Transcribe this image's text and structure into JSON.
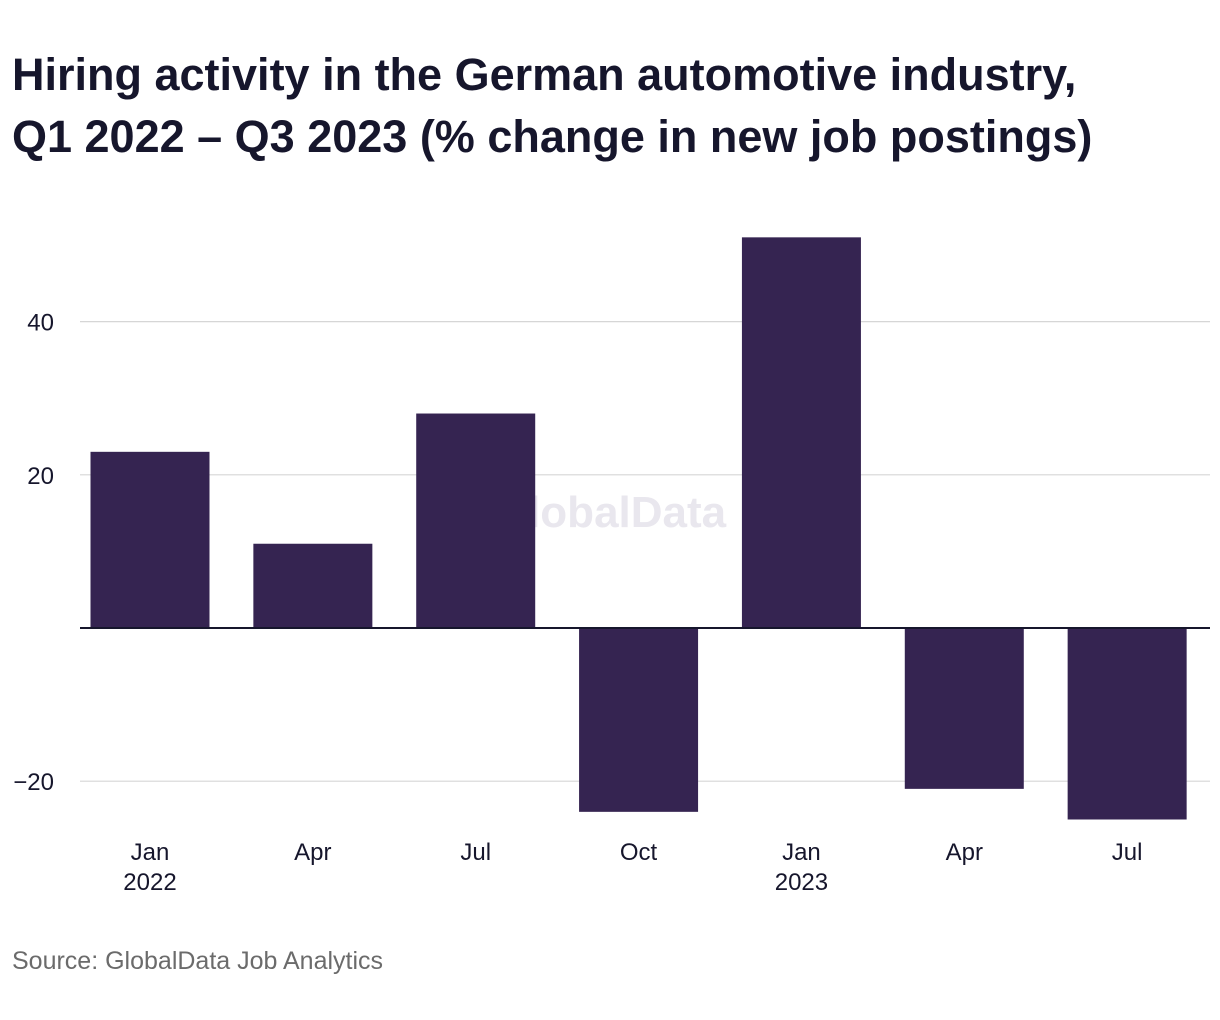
{
  "header": {
    "title_line1": "Hiring activity in the German automotive industry,",
    "title_line2": "Q1 2022 – Q3 2023 (% change in new job postings)"
  },
  "watermark": "GlobalData",
  "source": "Source: GlobalData Job Analytics",
  "colors": {
    "bar": "#352451",
    "grid": "#d6d6d6",
    "zero_line": "#16162c",
    "text": "#16162c"
  },
  "chart_data": {
    "type": "bar",
    "categories": [
      "Jan 2022",
      "Apr 2022",
      "Jul 2022",
      "Oct 2022",
      "Jan 2023",
      "Apr 2023",
      "Jul 2023"
    ],
    "tick_labels": [
      {
        "line1": "Jan",
        "line2": "2022"
      },
      {
        "line1": "Apr",
        "line2": ""
      },
      {
        "line1": "Jul",
        "line2": ""
      },
      {
        "line1": "Oct",
        "line2": ""
      },
      {
        "line1": "Jan",
        "line2": "2023"
      },
      {
        "line1": "Apr",
        "line2": ""
      },
      {
        "line1": "Jul",
        "line2": ""
      }
    ],
    "values": [
      23,
      11,
      28,
      -24,
      51,
      -21,
      -25
    ],
    "yticks": [
      -20,
      20,
      40
    ],
    "ytick_labels": [
      "−20",
      "20",
      "40"
    ],
    "ylim": [
      -26,
      55
    ],
    "grid": true,
    "legend": "none"
  }
}
